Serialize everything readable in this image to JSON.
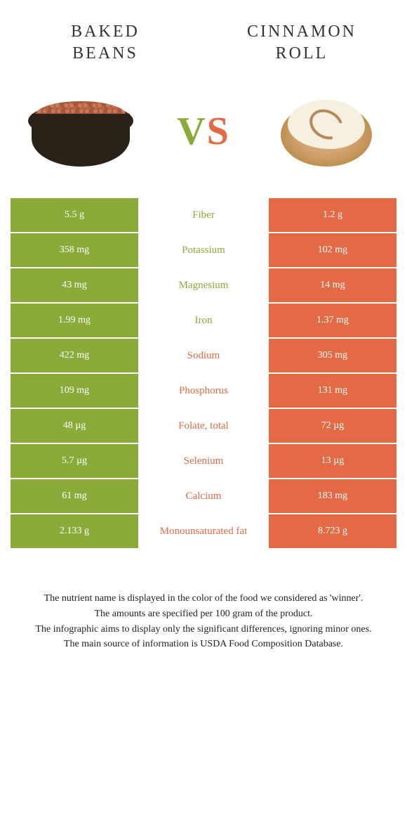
{
  "colors": {
    "green": "#8aab3a",
    "orange": "#e46a46",
    "white": "#ffffff",
    "text": "#333333"
  },
  "left": {
    "title": "BAKED BEANS"
  },
  "right": {
    "title": "CINNAMON ROLL"
  },
  "vs": {
    "v": "V",
    "s": "S"
  },
  "rows": [
    {
      "left": "5.5 g",
      "label": "Fiber",
      "right": "1.2 g",
      "winner": "left"
    },
    {
      "left": "358 mg",
      "label": "Potassium",
      "right": "102 mg",
      "winner": "left"
    },
    {
      "left": "43 mg",
      "label": "Magnesium",
      "right": "14 mg",
      "winner": "left"
    },
    {
      "left": "1.99 mg",
      "label": "Iron",
      "right": "1.37 mg",
      "winner": "left"
    },
    {
      "left": "422 mg",
      "label": "Sodium",
      "right": "305 mg",
      "winner": "right"
    },
    {
      "left": "109 mg",
      "label": "Phosphorus",
      "right": "131 mg",
      "winner": "right"
    },
    {
      "left": "48 µg",
      "label": "Folate, total",
      "right": "72 µg",
      "winner": "right"
    },
    {
      "left": "5.7 µg",
      "label": "Selenium",
      "right": "13 µg",
      "winner": "right"
    },
    {
      "left": "61 mg",
      "label": "Calcium",
      "right": "183 mg",
      "winner": "right"
    },
    {
      "left": "2.133 g",
      "label": "Monounsaturated fat",
      "right": "8.723 g",
      "winner": "right"
    }
  ],
  "footer": [
    "The nutrient name is displayed in the color of the food we considered as 'winner'.",
    "The amounts are specified per 100 gram of the product.",
    "The infographic aims to display only the significant differences, ignoring minor ones.",
    "The main source of information is USDA Food Composition Database."
  ]
}
